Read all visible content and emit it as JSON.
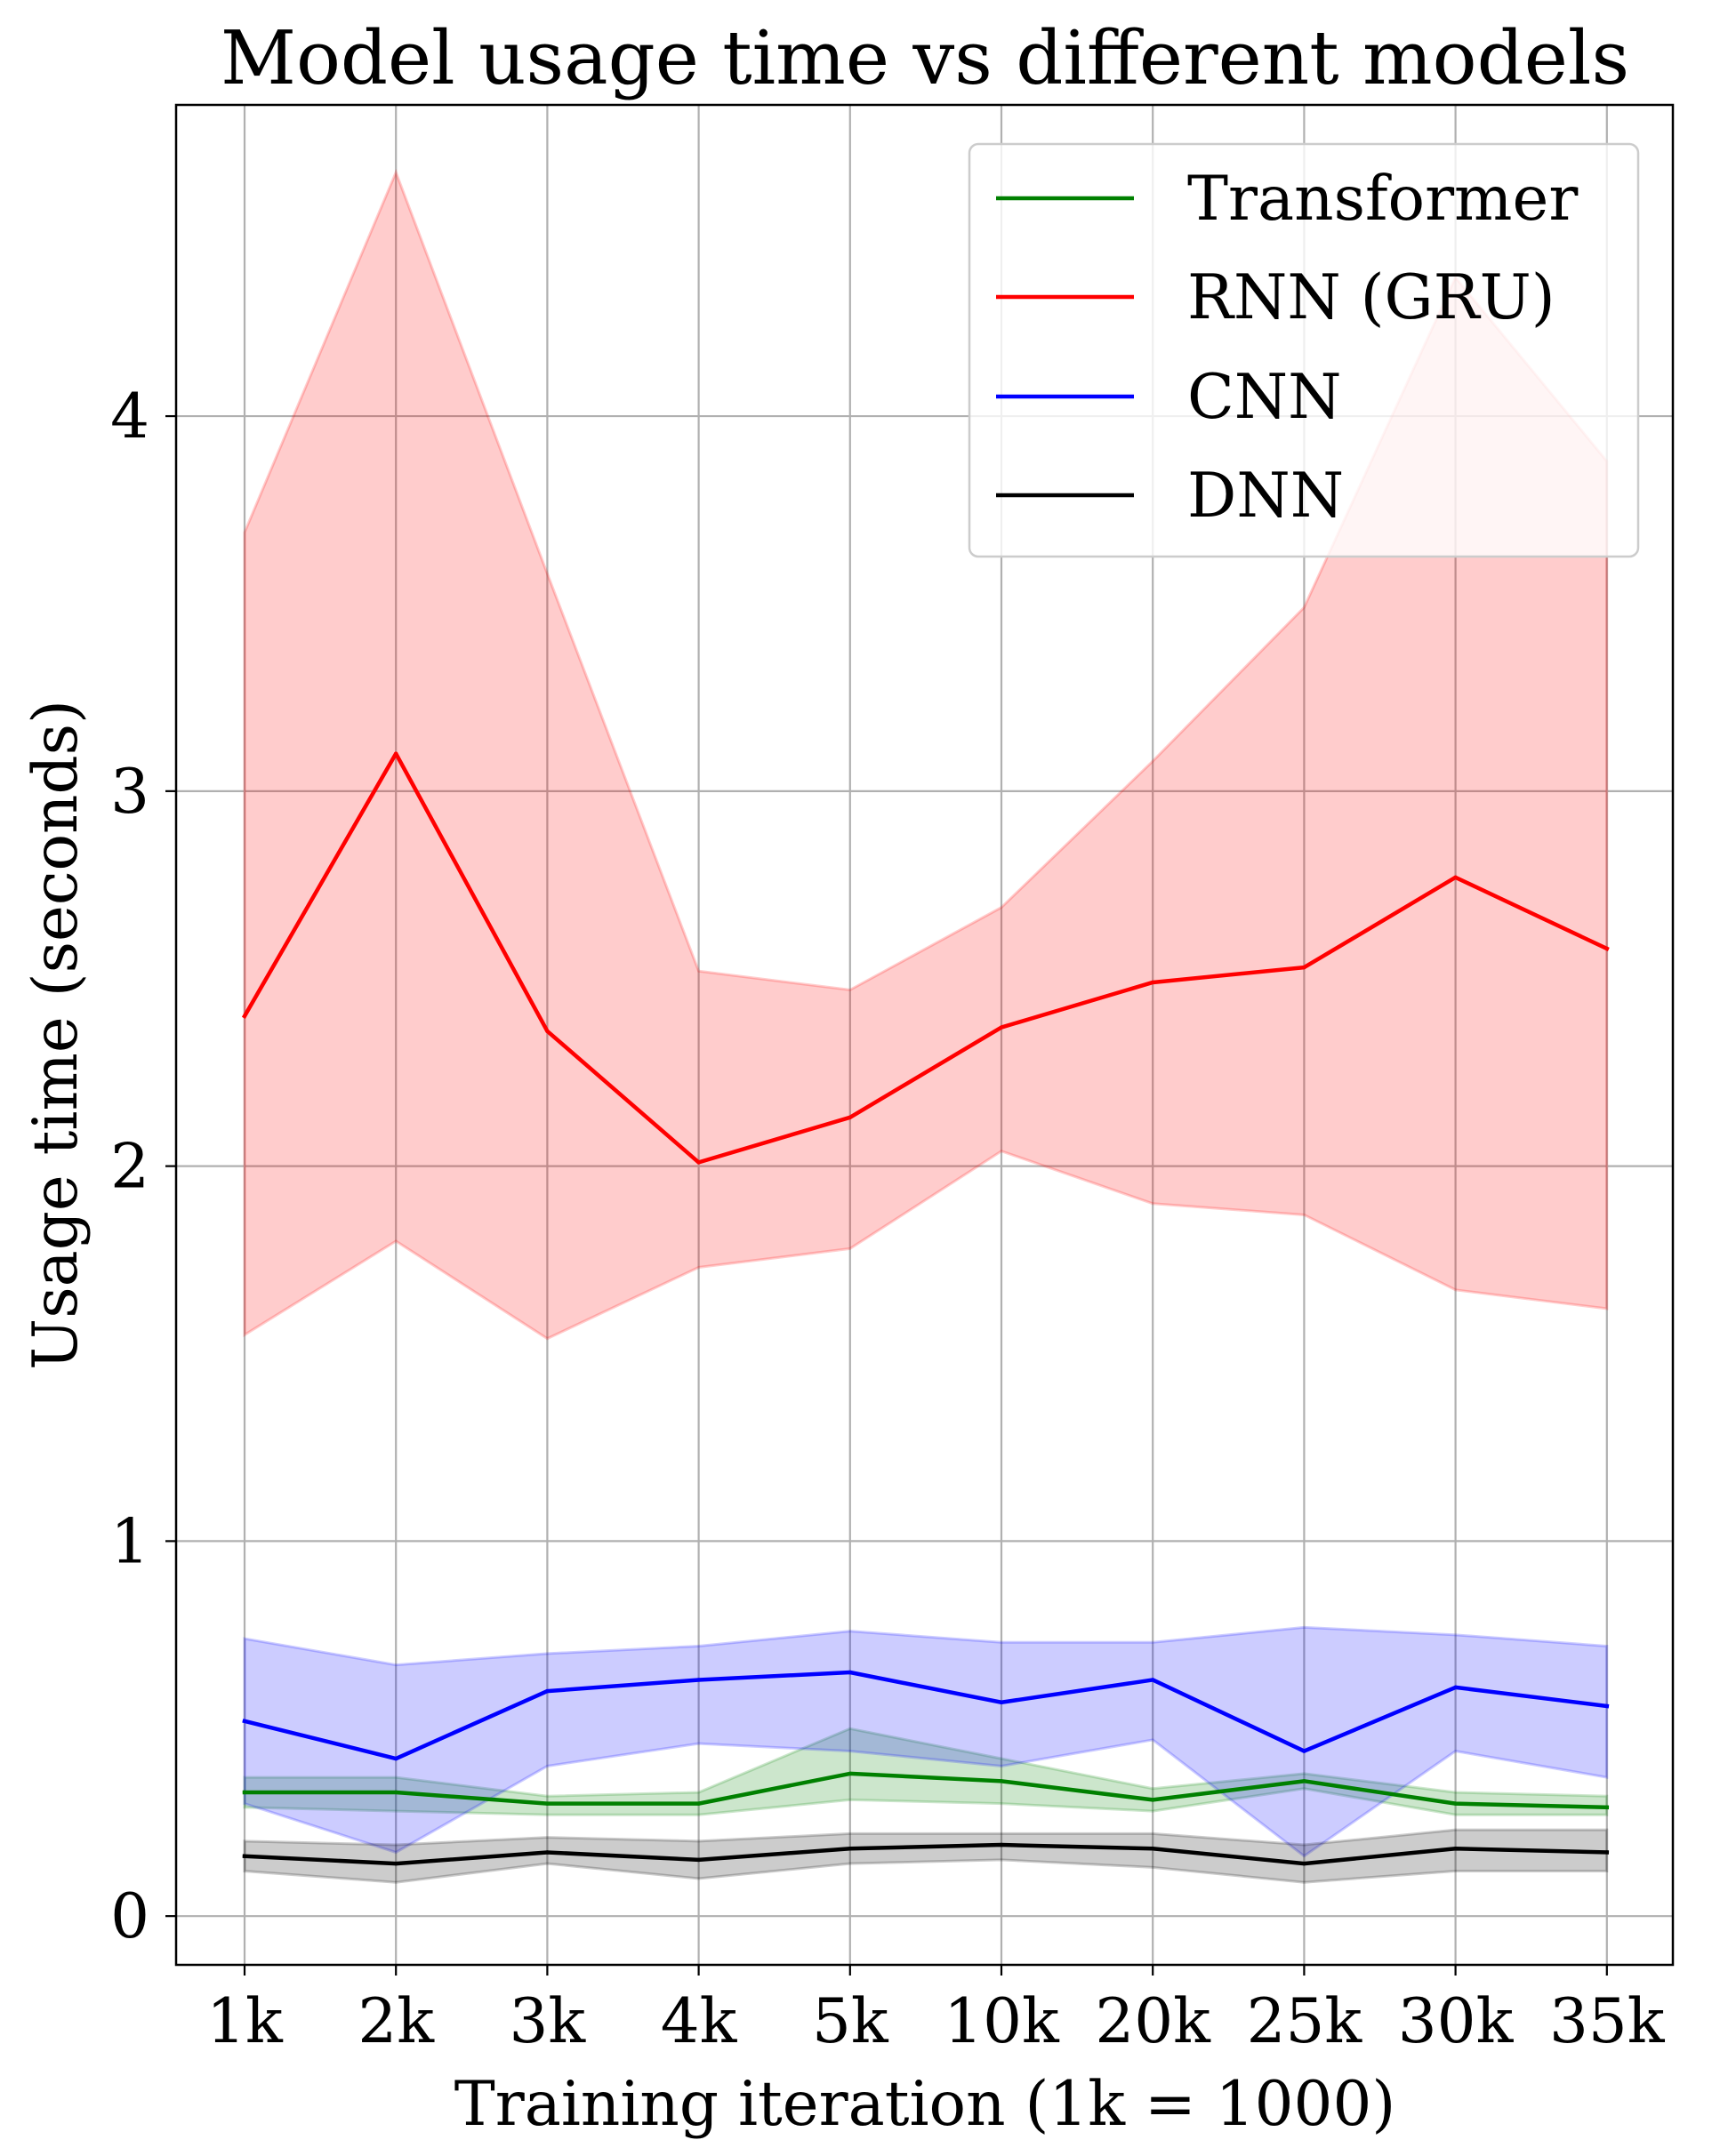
{
  "chart_data": {
    "type": "line",
    "title": "Model usage time vs different models",
    "xlabel": "Training iteration (1k = 1000)",
    "ylabel": "Usage time (seconds)",
    "categories": [
      "1k",
      "2k",
      "3k",
      "4k",
      "5k",
      "10k",
      "20k",
      "25k",
      "30k",
      "35k"
    ],
    "ylim": [
      -0.13,
      4.83
    ],
    "yticks": [
      0,
      1,
      2,
      3,
      4
    ],
    "grid": true,
    "legend_position": "top-right",
    "series": [
      {
        "name": "Transformer",
        "color": "#008000",
        "values": [
          0.33,
          0.33,
          0.3,
          0.3,
          0.38,
          0.36,
          0.31,
          0.36,
          0.3,
          0.29
        ],
        "lower": [
          0.29,
          0.28,
          0.27,
          0.27,
          0.31,
          0.3,
          0.28,
          0.34,
          0.27,
          0.27
        ],
        "upper": [
          0.37,
          0.37,
          0.32,
          0.33,
          0.5,
          0.42,
          0.34,
          0.38,
          0.33,
          0.32
        ]
      },
      {
        "name": "RNN (GRU)",
        "color": "#ff0000",
        "values": [
          2.4,
          3.1,
          2.36,
          2.01,
          2.13,
          2.37,
          2.49,
          2.53,
          2.77,
          2.58
        ],
        "lower": [
          1.55,
          1.8,
          1.54,
          1.73,
          1.78,
          2.04,
          1.9,
          1.87,
          1.67,
          1.62
        ],
        "upper": [
          3.69,
          4.65,
          3.58,
          2.52,
          2.47,
          2.69,
          3.08,
          3.49,
          4.37,
          3.88
        ]
      },
      {
        "name": "CNN",
        "color": "#0000ff",
        "values": [
          0.52,
          0.42,
          0.6,
          0.63,
          0.65,
          0.57,
          0.63,
          0.44,
          0.61,
          0.56
        ],
        "lower": [
          0.3,
          0.17,
          0.4,
          0.46,
          0.44,
          0.4,
          0.47,
          0.16,
          0.44,
          0.37
        ],
        "upper": [
          0.74,
          0.67,
          0.7,
          0.72,
          0.76,
          0.73,
          0.73,
          0.77,
          0.75,
          0.72
        ]
      },
      {
        "name": "DNN",
        "color": "#000000",
        "values": [
          0.16,
          0.14,
          0.17,
          0.15,
          0.18,
          0.19,
          0.18,
          0.14,
          0.18,
          0.17
        ],
        "lower": [
          0.12,
          0.09,
          0.14,
          0.1,
          0.14,
          0.15,
          0.13,
          0.09,
          0.12,
          0.12
        ],
        "upper": [
          0.2,
          0.19,
          0.21,
          0.2,
          0.22,
          0.22,
          0.22,
          0.19,
          0.23,
          0.23
        ]
      }
    ]
  }
}
